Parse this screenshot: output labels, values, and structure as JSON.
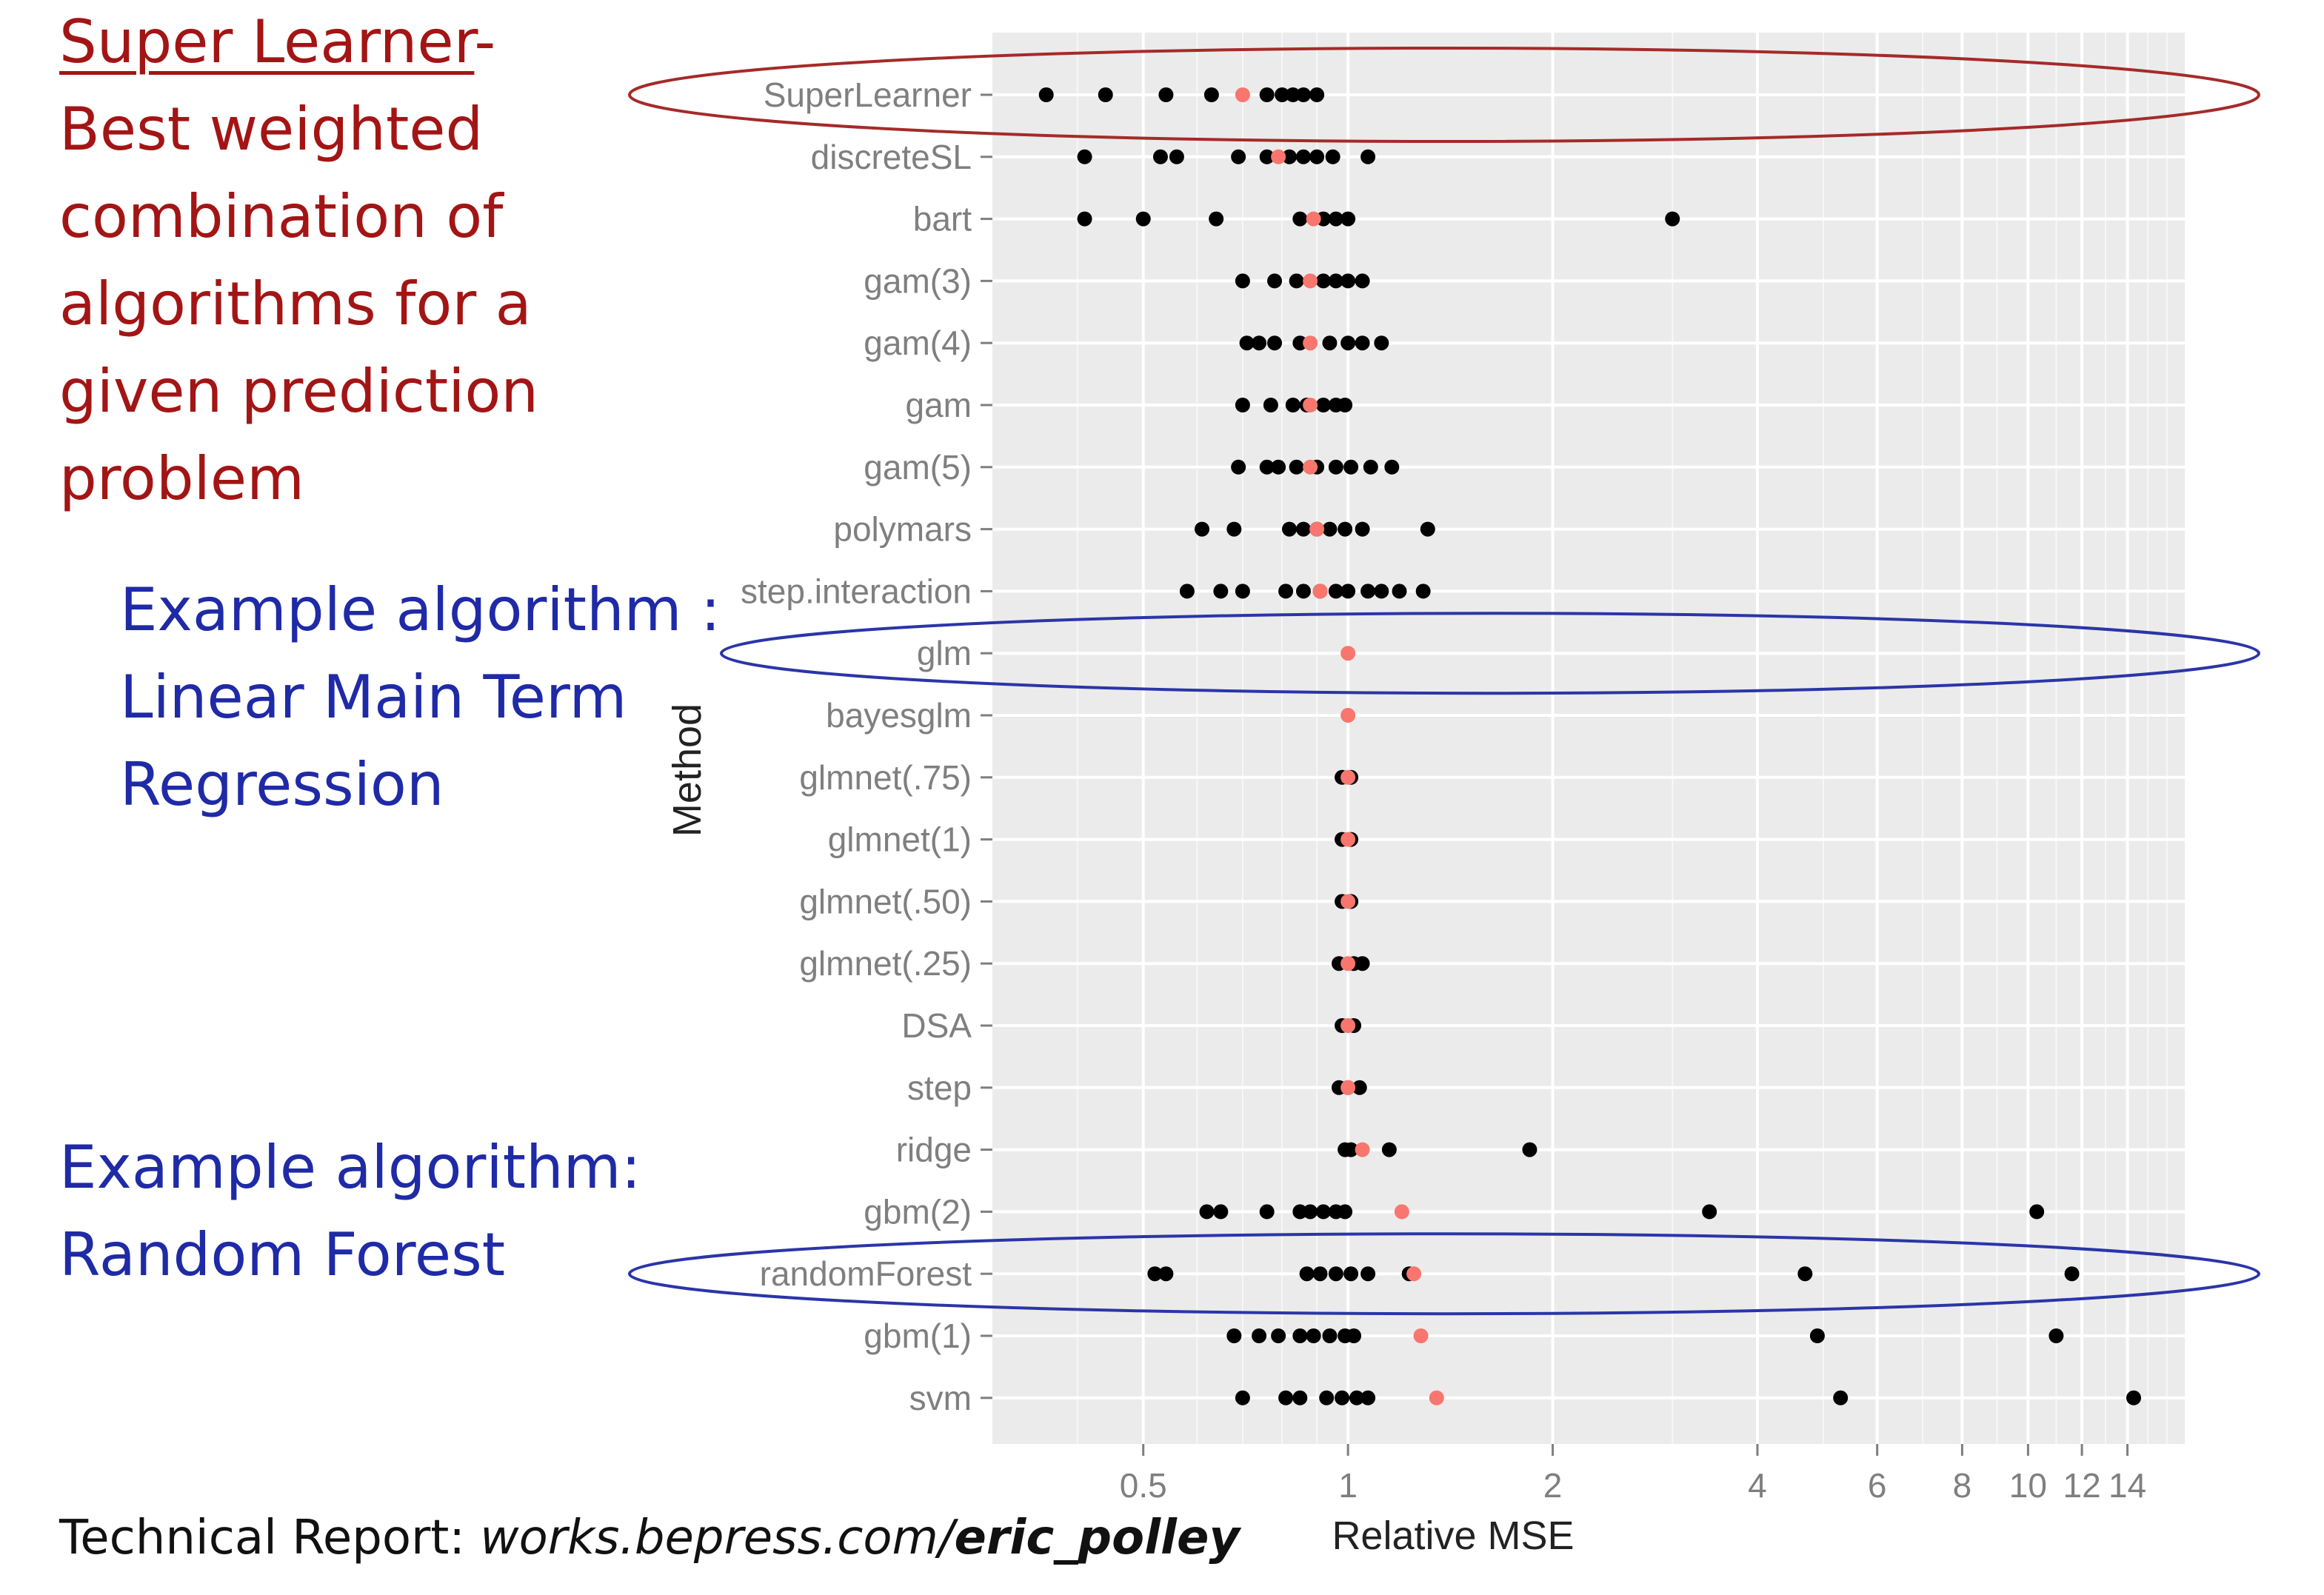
{
  "annotations": {
    "super_learner": {
      "title": "Super Learner",
      "dash": "-",
      "lines": [
        "Best weighted",
        "combination of",
        "algorithms for a",
        "given prediction",
        "problem"
      ]
    },
    "example_glm": {
      "lines": [
        "Example algorithm :",
        "Linear Main Term",
        "Regression"
      ]
    },
    "example_rf": {
      "lines": [
        "Example algorithm:",
        "Random Forest"
      ]
    }
  },
  "footnote": {
    "prefix": "Technical Report: ",
    "italic": "works.bepress.com/",
    "bold_italic": "eric_polley"
  },
  "colors": {
    "panel_bg": "#ebebeb",
    "grid": "#ffffff",
    "point": "#000000",
    "highlight_point": "#f8766d",
    "ellipse_red": "#a52a2a",
    "ellipse_blue": "#2b35a8"
  },
  "chart_data": {
    "type": "scatter",
    "xlabel": "Relative MSE",
    "ylabel": "Method",
    "x_scale": "log",
    "xlim": [
      0.3,
      17
    ],
    "x_ticks": [
      {
        "value": 0.5,
        "label": "0.5"
      },
      {
        "value": 1,
        "label": "1"
      },
      {
        "value": 2,
        "label": "2"
      },
      {
        "value": 4,
        "label": "4"
      },
      {
        "value": 6,
        "label": "6"
      },
      {
        "value": 8,
        "label": "8"
      },
      {
        "value": 10,
        "label": "10"
      },
      {
        "value": 12,
        "label": "12"
      },
      {
        "value": 14,
        "label": "14"
      }
    ],
    "x_minor_ticks": [
      0.4,
      0.6,
      0.7,
      0.8,
      0.9,
      3,
      5,
      7,
      9,
      11,
      13,
      15,
      16
    ],
    "grid": true,
    "methods": [
      {
        "name": "SuperLearner",
        "points": [
          0.36,
          0.44,
          0.54,
          0.63,
          0.76,
          0.8,
          0.83,
          0.86,
          0.9
        ],
        "highlight": 0.7
      },
      {
        "name": "discreteSL",
        "points": [
          0.41,
          0.53,
          0.56,
          0.69,
          0.76,
          0.82,
          0.86,
          0.9,
          0.95,
          1.07
        ],
        "highlight": 0.79
      },
      {
        "name": "bart",
        "points": [
          0.41,
          0.5,
          0.64,
          0.85,
          0.92,
          0.96,
          1.0,
          3.0
        ],
        "highlight": 0.89
      },
      {
        "name": "gam(3)",
        "points": [
          0.7,
          0.78,
          0.84,
          0.92,
          0.96,
          1.0,
          1.05
        ],
        "highlight": 0.88
      },
      {
        "name": "gam(4)",
        "points": [
          0.71,
          0.74,
          0.78,
          0.85,
          0.94,
          1.0,
          1.05,
          1.12
        ],
        "highlight": 0.88
      },
      {
        "name": "gam",
        "points": [
          0.7,
          0.77,
          0.83,
          0.87,
          0.92,
          0.96,
          0.99
        ],
        "highlight": 0.88
      },
      {
        "name": "gam(5)",
        "points": [
          0.69,
          0.76,
          0.79,
          0.84,
          0.9,
          0.96,
          1.01,
          1.08,
          1.16
        ],
        "highlight": 0.88
      },
      {
        "name": "polymars",
        "points": [
          0.61,
          0.68,
          0.82,
          0.86,
          0.9,
          0.94,
          0.99,
          1.05,
          1.31
        ],
        "highlight": 0.9
      },
      {
        "name": "step.interaction",
        "points": [
          0.58,
          0.65,
          0.7,
          0.81,
          0.86,
          0.91,
          0.96,
          1.0,
          1.07,
          1.12,
          1.19,
          1.29
        ],
        "highlight": 0.91
      },
      {
        "name": "glm",
        "points": [],
        "highlight": 1.0
      },
      {
        "name": "bayesglm",
        "points": [],
        "highlight": 1.0
      },
      {
        "name": "glmnet(.75)",
        "points": [
          0.98,
          1.01
        ],
        "highlight": 1.0
      },
      {
        "name": "glmnet(1)",
        "points": [
          0.98,
          1.01
        ],
        "highlight": 1.0
      },
      {
        "name": "glmnet(.50)",
        "points": [
          0.98,
          1.01
        ],
        "highlight": 1.0
      },
      {
        "name": "glmnet(.25)",
        "points": [
          0.97,
          1.02,
          1.05
        ],
        "highlight": 1.0
      },
      {
        "name": "DSA",
        "points": [
          0.98,
          1.02
        ],
        "highlight": 1.0
      },
      {
        "name": "step",
        "points": [
          0.97,
          1.0,
          1.04
        ],
        "highlight": 1.0
      },
      {
        "name": "ridge",
        "points": [
          0.99,
          1.01,
          1.15,
          1.85
        ],
        "highlight": 1.05
      },
      {
        "name": "gbm(2)",
        "points": [
          0.62,
          0.65,
          0.76,
          0.85,
          0.88,
          0.92,
          0.96,
          0.99,
          3.4,
          10.3
        ],
        "highlight": 1.2
      },
      {
        "name": "randomForest",
        "points": [
          0.52,
          0.54,
          0.87,
          0.91,
          0.96,
          1.01,
          1.07,
          1.23,
          4.7,
          11.6
        ],
        "highlight": 1.25
      },
      {
        "name": "gbm(1)",
        "points": [
          0.68,
          0.74,
          0.79,
          0.85,
          0.89,
          0.94,
          0.99,
          1.02,
          4.9,
          11.0
        ],
        "highlight": 1.28
      },
      {
        "name": "svm",
        "points": [
          0.7,
          0.81,
          0.85,
          0.93,
          0.98,
          1.03,
          1.07,
          5.3,
          14.3
        ],
        "highlight": 1.35
      }
    ]
  }
}
